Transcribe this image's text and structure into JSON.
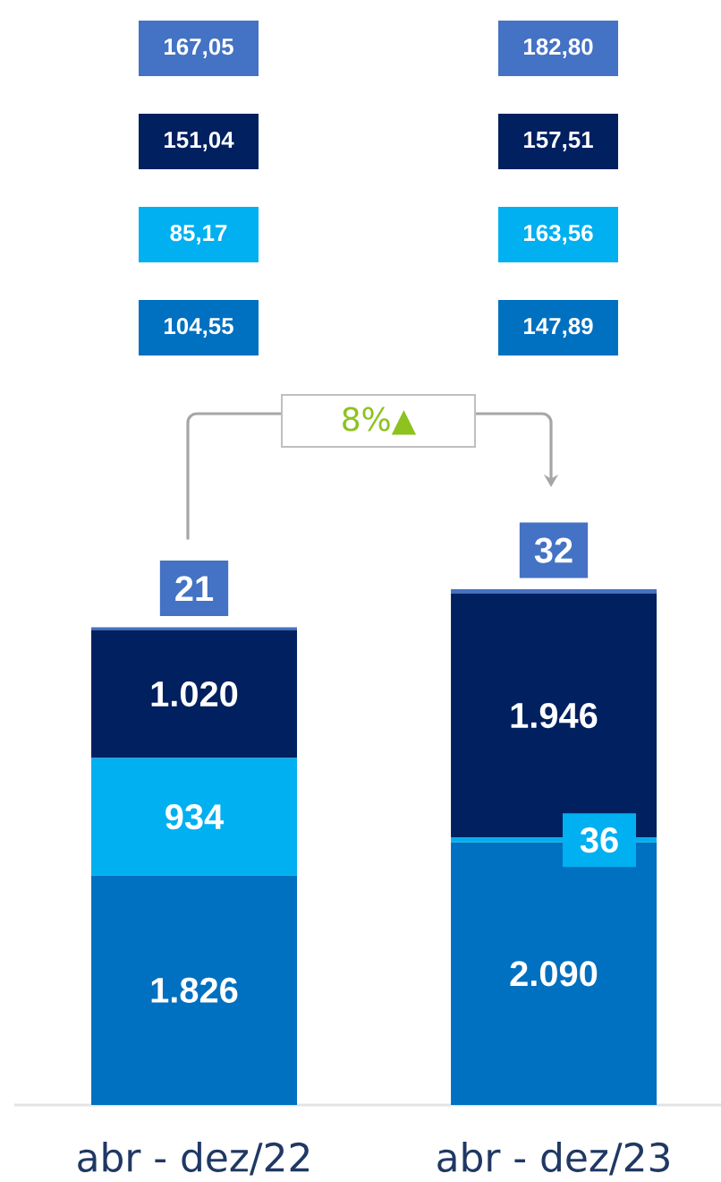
{
  "chart_data": {
    "type": "bar",
    "stacked": true,
    "categories": [
      "abr - dez/22",
      "abr - dez/23"
    ],
    "series": [
      {
        "color": "#0070c0",
        "values": [
          1826,
          2090
        ],
        "value_labels": [
          "1.826",
          "2.090"
        ]
      },
      {
        "color": "#00b0f0",
        "values": [
          934,
          36
        ],
        "value_labels": [
          "934",
          "36"
        ]
      },
      {
        "color": "#002060",
        "values": [
          1020,
          1946
        ],
        "value_labels": [
          "1.020",
          "1.946"
        ]
      },
      {
        "color": "#4472c4",
        "values": [
          21,
          32
        ],
        "value_labels": [
          "21",
          "32"
        ]
      }
    ],
    "annotations": [
      "167,05",
      "182,80",
      "151,04",
      "157,51",
      "85,17",
      "163,56",
      "104,55",
      "147,89",
      "8%▲"
    ],
    "tick_labels": "x"
  }
}
